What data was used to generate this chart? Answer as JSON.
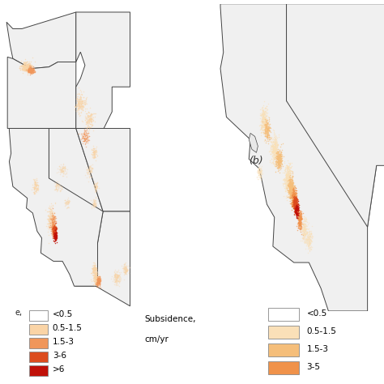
{
  "fig_width": 4.74,
  "fig_height": 4.74,
  "dpi": 100,
  "map_bg": "#e8e8e8",
  "state_face": "#f0f0f0",
  "state_edge": "#444444",
  "legend_a_labels": [
    "<0.5",
    "0.5-1.5",
    "1.5-3",
    "3-6",
    ">6"
  ],
  "legend_a_colors": [
    "#ffffff",
    "#fad4a6",
    "#f0965a",
    "#dc4c1e",
    "#c01008"
  ],
  "legend_b_labels": [
    "<0.5",
    "0.5-1.5",
    "1.5-3",
    "3-5"
  ],
  "legend_b_colors": [
    "#ffffff",
    "#fae0b8",
    "#f5be7a",
    "#f0924a"
  ],
  "lon_min": -125.0,
  "lon_max": -102.0,
  "lat_min": 31.0,
  "lat_max": 49.5,
  "lon_min_b": -124.5,
  "lon_max_b": -113.5,
  "lat_min_b": 32.5,
  "lat_max_b": 42.0
}
